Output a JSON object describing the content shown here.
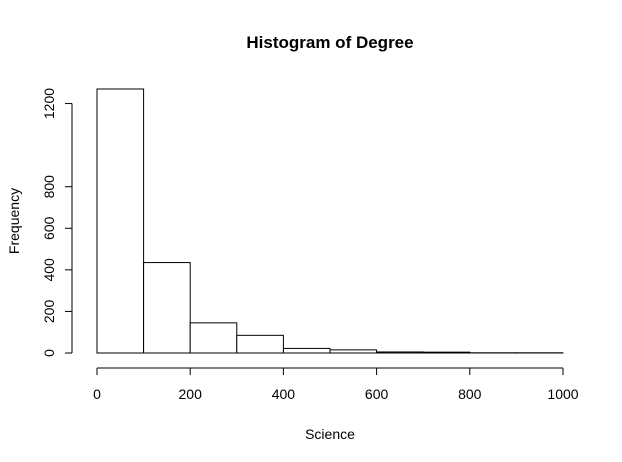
{
  "chart_data": {
    "type": "bar",
    "title": "Histogram of Degree",
    "xlabel": "Science",
    "ylabel": "Frequency",
    "bins": [
      {
        "start": 0,
        "end": 100,
        "value": 1270
      },
      {
        "start": 100,
        "end": 200,
        "value": 435
      },
      {
        "start": 200,
        "end": 300,
        "value": 145
      },
      {
        "start": 300,
        "end": 400,
        "value": 85
      },
      {
        "start": 400,
        "end": 500,
        "value": 22
      },
      {
        "start": 500,
        "end": 600,
        "value": 15
      },
      {
        "start": 600,
        "end": 700,
        "value": 5
      },
      {
        "start": 700,
        "end": 800,
        "value": 4
      },
      {
        "start": 800,
        "end": 900,
        "value": 1
      },
      {
        "start": 900,
        "end": 1000,
        "value": 1
      }
    ],
    "xlim": [
      0,
      1000
    ],
    "ylim": [
      0,
      1270
    ],
    "x_ticks": [
      0,
      200,
      400,
      600,
      800,
      1000
    ],
    "y_ticks": [
      0,
      200,
      400,
      600,
      800,
      1200
    ],
    "grid": false,
    "legend": "none",
    "colors": {
      "bar_fill": "#ffffff",
      "bar_stroke": "#000000"
    }
  }
}
